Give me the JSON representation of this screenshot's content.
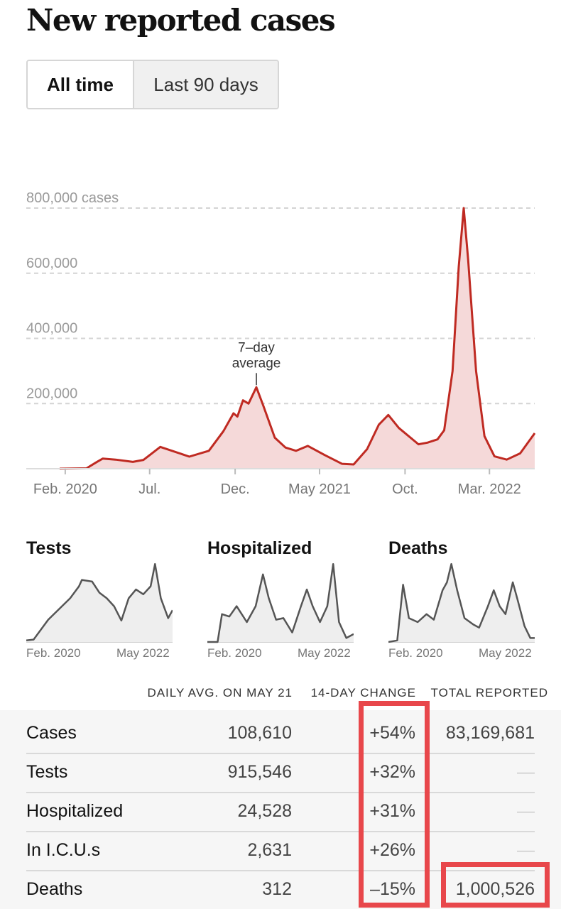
{
  "title": "New reported cases",
  "tabs": [
    {
      "label": "All time",
      "active": true
    },
    {
      "label": "Last 90 days",
      "active": false
    }
  ],
  "colors": {
    "line": "#bf2a22",
    "fill": "#f5d9d9",
    "mini_line": "#555555",
    "mini_fill": "#eeeeee",
    "highlight": "#e8474b"
  },
  "chart_data": [
    {
      "type": "area",
      "title": "",
      "xlabel": "",
      "ylabel": "",
      "y_tick_labels": [
        "800,000 cases",
        "600,000",
        "400,000",
        "200,000"
      ],
      "y_ticks": [
        800000,
        600000,
        400000,
        200000
      ],
      "ylim": [
        0,
        800000
      ],
      "x_tick_labels": [
        "Feb. 2020",
        "Jul.",
        "Dec.",
        "May 2021",
        "Oct.",
        "Mar. 2022"
      ],
      "x_ticks": [
        "2020-02-01",
        "2020-07-01",
        "2020-12-01",
        "2021-05-01",
        "2021-10-01",
        "2022-03-01"
      ],
      "xlim": [
        "2020-01-22",
        "2022-05-21"
      ],
      "grid": true,
      "annotation": {
        "text": [
          "7–day",
          "average"
        ],
        "x": "2021-01-08",
        "y": 250000
      },
      "series": [
        {
          "values": [
            [
              "2020-01-22",
              0
            ],
            [
              "2020-03-10",
              1000
            ],
            [
              "2020-03-28",
              20000
            ],
            [
              "2020-04-08",
              31000
            ],
            [
              "2020-05-01",
              28000
            ],
            [
              "2020-06-01",
              21000
            ],
            [
              "2020-06-20",
              27000
            ],
            [
              "2020-07-20",
              67000
            ],
            [
              "2020-08-10",
              55000
            ],
            [
              "2020-09-10",
              37000
            ],
            [
              "2020-10-15",
              55000
            ],
            [
              "2020-11-10",
              115000
            ],
            [
              "2020-11-28",
              170000
            ],
            [
              "2020-12-05",
              160000
            ],
            [
              "2020-12-15",
              210000
            ],
            [
              "2020-12-25",
              200000
            ],
            [
              "2021-01-08",
              250000
            ],
            [
              "2021-01-20",
              195000
            ],
            [
              "2021-02-10",
              95000
            ],
            [
              "2021-03-01",
              65000
            ],
            [
              "2021-03-20",
              55000
            ],
            [
              "2021-04-10",
              70000
            ],
            [
              "2021-05-10",
              42000
            ],
            [
              "2021-06-10",
              15000
            ],
            [
              "2021-07-01",
              13000
            ],
            [
              "2021-07-25",
              60000
            ],
            [
              "2021-08-15",
              135000
            ],
            [
              "2021-09-01",
              165000
            ],
            [
              "2021-09-20",
              125000
            ],
            [
              "2021-10-25",
              75000
            ],
            [
              "2021-11-10",
              80000
            ],
            [
              "2021-11-28",
              90000
            ],
            [
              "2021-12-10",
              118000
            ],
            [
              "2021-12-25",
              300000
            ],
            [
              "2022-01-05",
              620000
            ],
            [
              "2022-01-14",
              800000
            ],
            [
              "2022-01-22",
              640000
            ],
            [
              "2022-02-05",
              300000
            ],
            [
              "2022-02-20",
              100000
            ],
            [
              "2022-03-10",
              38000
            ],
            [
              "2022-04-01",
              28000
            ],
            [
              "2022-04-25",
              47000
            ],
            [
              "2022-05-21",
              109000
            ]
          ]
        }
      ]
    },
    {
      "type": "area",
      "title": "Tests",
      "x_tick_labels": [
        "Feb. 2020",
        "May 2022"
      ],
      "xlim": [
        "2020-02-01",
        "2022-05-21"
      ],
      "series": [
        {
          "values": [
            [
              0,
              0.02
            ],
            [
              0.05,
              0.03
            ],
            [
              0.15,
              0.28
            ],
            [
              0.3,
              0.55
            ],
            [
              0.36,
              0.7
            ],
            [
              0.38,
              0.78
            ],
            [
              0.45,
              0.76
            ],
            [
              0.5,
              0.62
            ],
            [
              0.55,
              0.55
            ],
            [
              0.6,
              0.45
            ],
            [
              0.65,
              0.27
            ],
            [
              0.7,
              0.55
            ],
            [
              0.75,
              0.66
            ],
            [
              0.8,
              0.6
            ],
            [
              0.85,
              0.7
            ],
            [
              0.88,
              0.98
            ],
            [
              0.92,
              0.55
            ],
            [
              0.97,
              0.3
            ],
            [
              1,
              0.4
            ]
          ]
        }
      ]
    },
    {
      "type": "area",
      "title": "Hospitalized",
      "x_tick_labels": [
        "Feb. 2020",
        "May 2022"
      ],
      "xlim": [
        "2020-02-01",
        "2022-05-21"
      ],
      "series": [
        {
          "values": [
            [
              0,
              0
            ],
            [
              0.07,
              0
            ],
            [
              0.1,
              0.35
            ],
            [
              0.15,
              0.32
            ],
            [
              0.2,
              0.45
            ],
            [
              0.27,
              0.25
            ],
            [
              0.33,
              0.45
            ],
            [
              0.38,
              0.85
            ],
            [
              0.42,
              0.55
            ],
            [
              0.47,
              0.28
            ],
            [
              0.52,
              0.3
            ],
            [
              0.58,
              0.12
            ],
            [
              0.64,
              0.45
            ],
            [
              0.68,
              0.66
            ],
            [
              0.72,
              0.45
            ],
            [
              0.77,
              0.25
            ],
            [
              0.82,
              0.45
            ],
            [
              0.86,
              0.98
            ],
            [
              0.9,
              0.25
            ],
            [
              0.95,
              0.05
            ],
            [
              1,
              0.1
            ]
          ]
        }
      ]
    },
    {
      "type": "area",
      "title": "Deaths",
      "x_tick_labels": [
        "Feb. 2020",
        "May 2022"
      ],
      "xlim": [
        "2020-02-01",
        "2022-05-21"
      ],
      "series": [
        {
          "values": [
            [
              0,
              0
            ],
            [
              0.06,
              0.02
            ],
            [
              0.1,
              0.72
            ],
            [
              0.14,
              0.3
            ],
            [
              0.2,
              0.25
            ],
            [
              0.26,
              0.35
            ],
            [
              0.31,
              0.28
            ],
            [
              0.37,
              0.65
            ],
            [
              0.4,
              0.75
            ],
            [
              0.43,
              0.98
            ],
            [
              0.47,
              0.65
            ],
            [
              0.52,
              0.3
            ],
            [
              0.58,
              0.22
            ],
            [
              0.62,
              0.18
            ],
            [
              0.68,
              0.45
            ],
            [
              0.72,
              0.65
            ],
            [
              0.76,
              0.45
            ],
            [
              0.8,
              0.35
            ],
            [
              0.85,
              0.75
            ],
            [
              0.88,
              0.55
            ],
            [
              0.93,
              0.2
            ],
            [
              0.97,
              0.05
            ],
            [
              1,
              0.05
            ]
          ]
        }
      ]
    }
  ],
  "table": {
    "headers": [
      "",
      "DAILY AVG. ON MAY 21",
      "14-DAY CHANGE",
      "TOTAL REPORTED"
    ],
    "rows": [
      {
        "name": "Cases",
        "avg": "108,610",
        "change": "+54%",
        "total": "83,169,681"
      },
      {
        "name": "Tests",
        "avg": "915,546",
        "change": "+32%",
        "total": "—"
      },
      {
        "name": "Hospitalized",
        "avg": "24,528",
        "change": "+31%",
        "total": "—"
      },
      {
        "name": "In I.C.U.s",
        "avg": "2,631",
        "change": "+26%",
        "total": "—"
      },
      {
        "name": "Deaths",
        "avg": "312",
        "change": "–15%",
        "total": "1,000,526"
      }
    ]
  }
}
